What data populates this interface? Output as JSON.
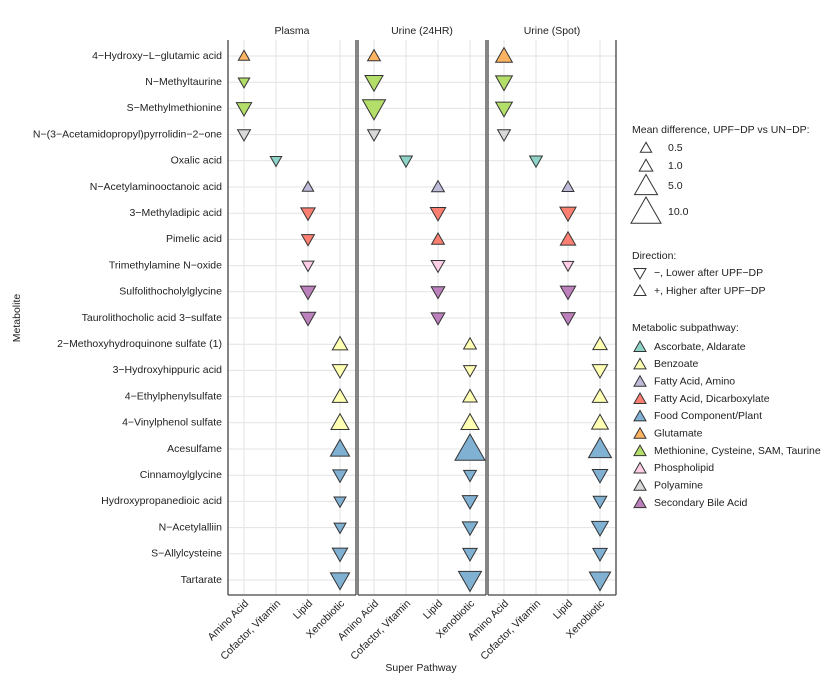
{
  "chart_data": {
    "type": "triangle",
    "xlabel": "Super Pathway",
    "ylabel": "Metabolite",
    "x_categories": [
      "Amino Acid",
      "Cofactor, Vitamin",
      "Lipid",
      "Xenobiotic"
    ],
    "categories": [
      "4−Hydroxy−L−glutamic acid",
      "N−Methyltaurine",
      "S−Methylmethionine",
      "N−(3−Acetamidopropyl)pyrrolidin−2−one",
      "Oxalic acid",
      "N−Acetylaminooctanoic acid",
      "3−Methyladipic acid",
      "Pimelic acid",
      "Trimethylamine N−oxide",
      "Sulfolithocholylglycine",
      "Taurolithocholic acid 3−sulfate",
      "2−Methoxyhydroquinone sulfate (1)",
      "3−Hydroxyhippuric acid",
      "4−Ethylphenylsulfate",
      "4−Vinylphenol sulfate",
      "Acesulfame",
      "Cinnamoylglycine",
      "Hydroxypropanedioic acid",
      "N−Acetylalliin",
      "S−Allylcysteine",
      "Tartarate"
    ],
    "super_pathway": [
      "Amino Acid",
      "Amino Acid",
      "Amino Acid",
      "Amino Acid",
      "Cofactor, Vitamin",
      "Lipid",
      "Lipid",
      "Lipid",
      "Lipid",
      "Lipid",
      "Lipid",
      "Xenobiotic",
      "Xenobiotic",
      "Xenobiotic",
      "Xenobiotic",
      "Xenobiotic",
      "Xenobiotic",
      "Xenobiotic",
      "Xenobiotic",
      "Xenobiotic",
      "Xenobiotic"
    ],
    "subpathway": [
      "Glutamate",
      "Methionine, Cysteine, SAM, Taurine",
      "Methionine, Cysteine, SAM, Taurine",
      "Polyamine",
      "Ascorbate, Aldarate",
      "Fatty Acid, Amino",
      "Fatty Acid, Dicarboxylate",
      "Fatty Acid, Dicarboxylate",
      "Phospholipid",
      "Secondary Bile Acid",
      "Secondary Bile Acid",
      "Benzoate",
      "Benzoate",
      "Benzoate",
      "Benzoate",
      "Food Component/Plant",
      "Food Component/Plant",
      "Food Component/Plant",
      "Food Component/Plant",
      "Food Component/Plant",
      "Food Component/Plant"
    ],
    "series": [
      {
        "name": "Plasma",
        "values": [
          0.5,
          -0.5,
          -1.5,
          -0.8,
          -0.5,
          0.5,
          -1.2,
          -0.8,
          -0.6,
          -1.5,
          -1.5,
          1.5,
          -1.5,
          1.5,
          2.5,
          3,
          -1.2,
          -0.6,
          -0.6,
          -1.5,
          -3
        ]
      },
      {
        "name": "Urine (24HR)",
        "values": [
          0.8,
          -2.5,
          -5,
          -0.8,
          -0.8,
          0.8,
          -1.5,
          0.8,
          -1,
          -1,
          -1,
          0.8,
          -0.8,
          1.2,
          2.5,
          10,
          -0.8,
          -1.5,
          -1.5,
          -1.2,
          -5
        ]
      },
      {
        "name": "Urine (Spot)",
        "values": [
          2,
          -2,
          -2,
          -0.8,
          -0.8,
          0.6,
          -1.8,
          1.5,
          -0.5,
          -1.5,
          -1.2,
          1.2,
          -1.5,
          1.5,
          2,
          5,
          -1.5,
          -1,
          -2,
          -1.2,
          -4
        ]
      }
    ],
    "size_legend": {
      "title": "Mean difference, UPF−DP vs UN−DP:",
      "values": [
        0.5,
        {
          "value": 1,
          "label": "1.0"
        },
        {
          "value": 5,
          "label": "5.0"
        },
        {
          "value": 10,
          "label": "10.0"
        }
      ]
    },
    "direction_legend": {
      "title": "Direction:",
      "entries": [
        "−, Lower after UPF−DP",
        "+, Higher after UPF−DP"
      ]
    },
    "color_legend": {
      "title": "Metabolic subpathway:",
      "entries": [
        {
          "name": "Ascorbate, Aldarate",
          "color": "#8dd3c7"
        },
        {
          "name": "Benzoate",
          "color": "#ffffb3"
        },
        {
          "name": "Fatty Acid, Amino",
          "color": "#bebada"
        },
        {
          "name": "Fatty Acid, Dicarboxylate",
          "color": "#fb8072"
        },
        {
          "name": "Food Component/Plant",
          "color": "#80b1d3"
        },
        {
          "name": "Glutamate",
          "color": "#fdb462"
        },
        {
          "name": "Methionine, Cysteine, SAM, Taurine",
          "color": "#b3de69"
        },
        {
          "name": "Phospholipid",
          "color": "#fccde5"
        },
        {
          "name": "Polyamine",
          "color": "#d9d9d9"
        },
        {
          "name": "Secondary Bile Acid",
          "color": "#bc80bd"
        }
      ]
    },
    "grid": true
  }
}
